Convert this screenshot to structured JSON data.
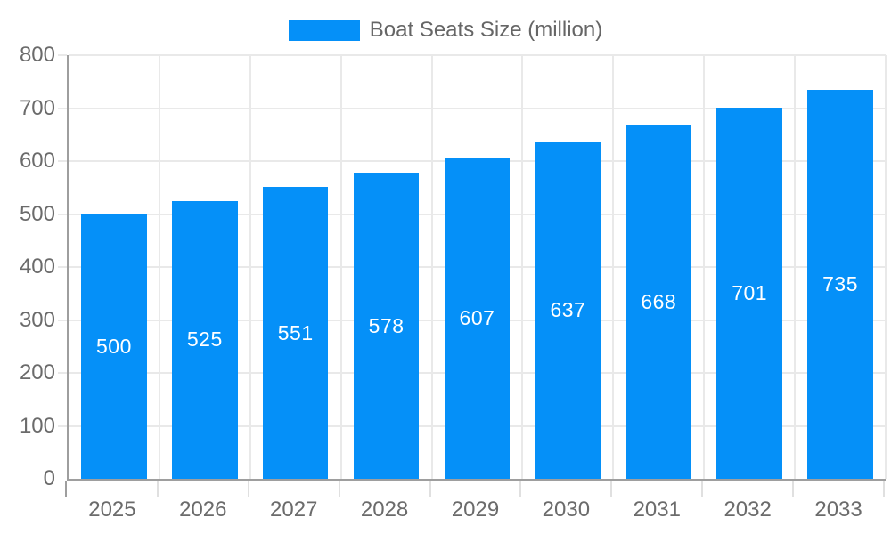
{
  "chart_data": {
    "type": "bar",
    "title": "Boat Seats Size (million)",
    "categories": [
      "2025",
      "2026",
      "2027",
      "2028",
      "2029",
      "2030",
      "2031",
      "2032",
      "2033"
    ],
    "values": [
      500,
      525,
      551,
      578,
      607,
      637,
      668,
      701,
      735
    ],
    "xlabel": "",
    "ylabel": "",
    "ylim": [
      0,
      800
    ],
    "ytick_interval": 100,
    "grid": true,
    "legend_position": "top",
    "bar_color": "#0590f8",
    "value_label_color": "#ffffff"
  },
  "legend": {
    "label": "Boat Seats Size (million)"
  },
  "style": {
    "axis_color": "#9e9e9e",
    "grid_color": "#e9e9e9",
    "tick_text_color": "#6b6b6b",
    "background": "#ffffff"
  }
}
